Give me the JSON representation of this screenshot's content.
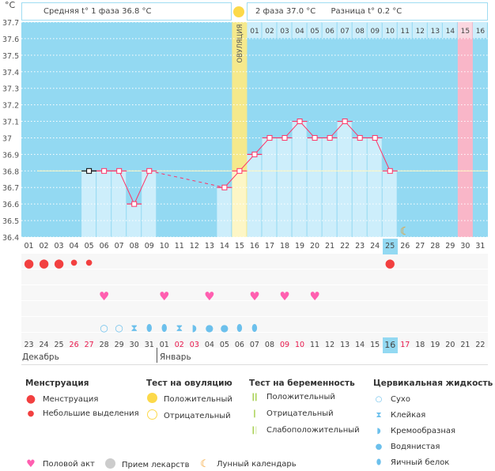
{
  "header": {
    "unit": "°C",
    "phase1": "Средняя t° 1 фаза 36.8 °C",
    "phase2": "2 фаза 37.0 °C",
    "diff": "Разница t° 0.2 °C",
    "ovulation_label": "ОВУЛЯЦИЯ"
  },
  "chart_data": {
    "type": "line",
    "ylim": [
      36.4,
      37.7
    ],
    "y_ticks": [
      "37.7",
      "37.6",
      "37.5",
      "37.4",
      "37.3",
      "37.2",
      "37.1",
      "37",
      "36.9",
      "36.8",
      "36.7",
      "36.6",
      "36.5",
      "36.4"
    ],
    "cycle_days": [
      "01",
      "02",
      "03",
      "04",
      "05",
      "06",
      "07",
      "08",
      "09",
      "10",
      "11",
      "12",
      "13",
      "14",
      "15",
      "16",
      "17",
      "18",
      "19",
      "20",
      "21",
      "22",
      "23",
      "24",
      "25",
      "26",
      "27",
      "28",
      "29",
      "30",
      "31"
    ],
    "temperatures": [
      null,
      null,
      null,
      null,
      36.8,
      36.8,
      36.8,
      36.6,
      36.8,
      null,
      null,
      null,
      null,
      36.7,
      36.8,
      36.9,
      37.0,
      37.0,
      37.1,
      37.0,
      37.0,
      37.1,
      37.0,
      37.0,
      36.8,
      null,
      null,
      null,
      null,
      null,
      null
    ],
    "coverline": 36.8,
    "ovulation_day": 15,
    "luteal_day_labels": [
      "01",
      "02",
      "03",
      "04",
      "05",
      "06",
      "07",
      "08",
      "09",
      "10",
      "11",
      "12",
      "13",
      "14",
      "15",
      "16"
    ],
    "highlighted_luteal_label": "15",
    "today_cycle_day": "25",
    "moon_day": 26,
    "grid": true
  },
  "rows": {
    "menstruation": {
      "1": "heavy",
      "2": "heavy",
      "3": "heavy",
      "4": "light",
      "5": "light",
      "25": "heavy"
    },
    "intercourse": [
      6,
      10,
      13,
      16,
      18,
      20
    ],
    "cervical_fluid": {
      "6": "dry",
      "7": "dry",
      "8": "sticky",
      "9": "eggwhite",
      "10": "eggwhite",
      "11": "sticky",
      "12": "creamy",
      "13": "watery",
      "14": "watery",
      "15": "eggwhite",
      "16": "eggwhite"
    }
  },
  "dates": [
    {
      "d": "23"
    },
    {
      "d": "24"
    },
    {
      "d": "25"
    },
    {
      "d": "26",
      "r": 1
    },
    {
      "d": "27",
      "r": 1
    },
    {
      "d": "28"
    },
    {
      "d": "29"
    },
    {
      "d": "30"
    },
    {
      "d": "31"
    },
    {
      "d": "01"
    },
    {
      "d": "02",
      "r": 1
    },
    {
      "d": "03",
      "r": 1
    },
    {
      "d": "04"
    },
    {
      "d": "05"
    },
    {
      "d": "06"
    },
    {
      "d": "07"
    },
    {
      "d": "08"
    },
    {
      "d": "09",
      "r": 1
    },
    {
      "d": "10",
      "r": 1
    },
    {
      "d": "11"
    },
    {
      "d": "12"
    },
    {
      "d": "13"
    },
    {
      "d": "14"
    },
    {
      "d": "15"
    },
    {
      "d": "16",
      "today": 1
    },
    {
      "d": "17",
      "r": 1
    },
    {
      "d": "18"
    },
    {
      "d": "19"
    },
    {
      "d": "20"
    },
    {
      "d": "21"
    },
    {
      "d": "22"
    }
  ],
  "months": {
    "dec": "Декабрь",
    "jan": "Январь"
  },
  "legend": {
    "menstruation": {
      "title": "Менструация",
      "items": [
        "Менструация",
        "Небольшие выделения"
      ]
    },
    "ovulation_test": {
      "title": "Тест на овуляцию",
      "items": [
        "Положительный",
        "Отрицательный"
      ]
    },
    "pregnancy_test": {
      "title": "Тест на беременность",
      "items": [
        "Положительный",
        "Отрицательный",
        "Слабоположительный"
      ]
    },
    "cervical": {
      "title": "Цервикальная жидкость",
      "items": [
        "Сухо",
        "Клейкая",
        "Кремообразная",
        "Водянистая",
        "Яичный белок"
      ]
    },
    "other": [
      "Половой акт",
      "Прием лекарств",
      "Лунный календарь"
    ]
  },
  "colors": {
    "plot_bg": "#93d9f2",
    "bar": "#cdeefb",
    "line": "#ff3366",
    "ovulation": "#f5e98c",
    "blood": "#f24040",
    "heart": "#ff5fb0",
    "fluid": "#6cc0ec",
    "moon": "#f39a1e",
    "pink_col": "#f9b6c8"
  }
}
